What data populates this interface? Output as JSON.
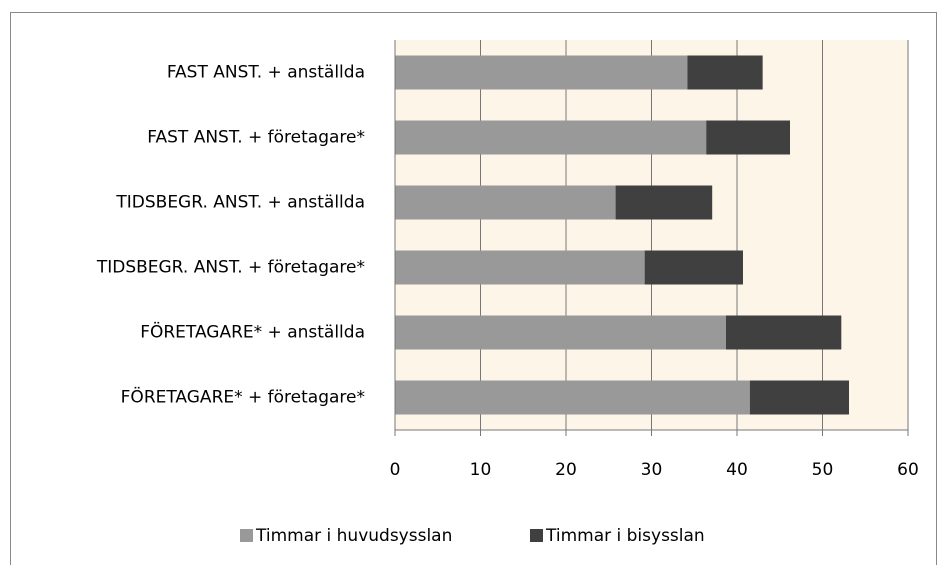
{
  "chart_data": {
    "type": "hbar_stacked",
    "categories": [
      "FAST ANST. + anställda",
      "FAST ANST. + företagare*",
      "TIDSBEGR. ANST. + anställda",
      "TIDSBEGR. ANST. + företagare*",
      "FÖRETAGARE* + anställda",
      "FÖRETAGARE* + företagare*"
    ],
    "series": [
      {
        "name": "Timmar i huvudsysslan",
        "color": "#999999",
        "values": [
          34.2,
          36.4,
          25.8,
          29.2,
          38.7,
          41.5
        ]
      },
      {
        "name": "Timmar i bisysslan",
        "color": "#404040",
        "values": [
          8.8,
          9.8,
          11.3,
          11.5,
          13.5,
          11.6
        ]
      }
    ],
    "xlim": [
      0,
      60
    ],
    "xticks": [
      0,
      10,
      20,
      30,
      40,
      50,
      60
    ],
    "grid": true,
    "legend": "bottom"
  }
}
